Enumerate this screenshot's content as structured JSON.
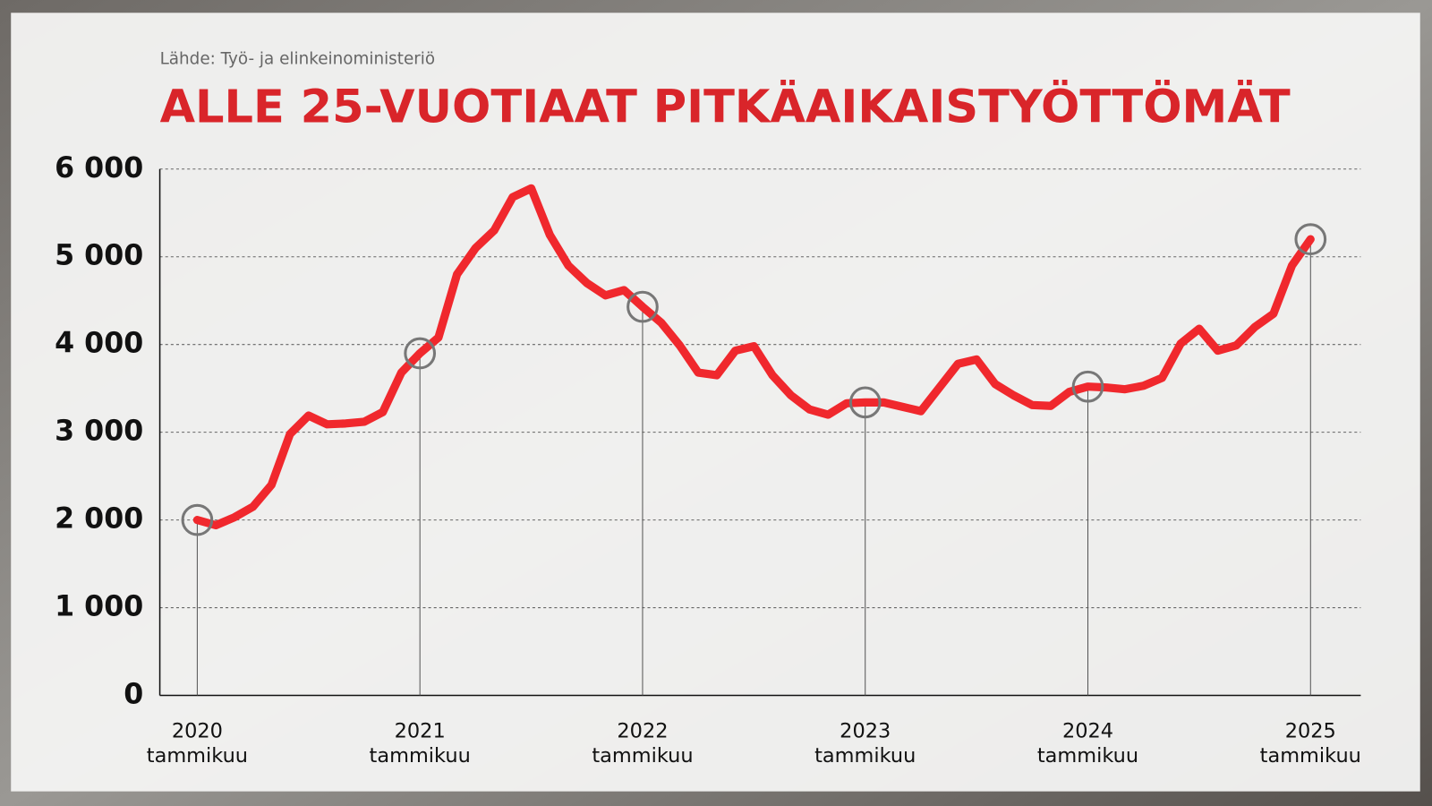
{
  "chart_data": {
    "type": "line",
    "source": "Lähde: Työ- ja elinkeinoministeriö",
    "title": "ALLE 25-VUOTIAAT PITKÄAIKAISTYÖTTÖMÄT",
    "categories": [
      "2020 tammikuu",
      null,
      null,
      null,
      null,
      null,
      null,
      null,
      null,
      null,
      null,
      null,
      "2021 tammikuu",
      null,
      null,
      null,
      null,
      null,
      null,
      null,
      null,
      null,
      null,
      null,
      "2022 tammikuu",
      null,
      null,
      null,
      null,
      null,
      null,
      null,
      null,
      null,
      null,
      null,
      "2023 tammikuu",
      null,
      null,
      null,
      null,
      null,
      null,
      null,
      null,
      null,
      null,
      null,
      "2024 tammikuu",
      null,
      null,
      null,
      null,
      null,
      null,
      null,
      null,
      null,
      null,
      null,
      "2025 tammikuu"
    ],
    "values": [
      2000,
      1940,
      2030,
      2150,
      2400,
      2980,
      3190,
      3090,
      3100,
      3120,
      3230,
      3680,
      3900,
      4080,
      4800,
      5100,
      5300,
      5680,
      5780,
      5250,
      4900,
      4700,
      4560,
      4620,
      4430,
      4250,
      3990,
      3680,
      3650,
      3930,
      3980,
      3650,
      3420,
      3260,
      3200,
      3330,
      3340,
      3340,
      3290,
      3240,
      3510,
      3780,
      3830,
      3550,
      3420,
      3310,
      3300,
      3460,
      3520,
      3510,
      3490,
      3530,
      3620,
      4010,
      4180,
      3930,
      3990,
      4200,
      4350,
      4900,
      5200
    ],
    "color": "#f0282d",
    "ylim": [
      0,
      6000
    ],
    "yticks": [
      0,
      {
        "value": 1000,
        "label": "1 000"
      },
      {
        "value": 2000,
        "label": "2 000"
      },
      {
        "value": 3000,
        "label": "3 000"
      },
      {
        "value": 4000,
        "label": "4 000"
      },
      {
        "value": 5000,
        "label": "5 000"
      },
      {
        "value": 6000,
        "label": "6 000"
      }
    ],
    "grid": true
  }
}
